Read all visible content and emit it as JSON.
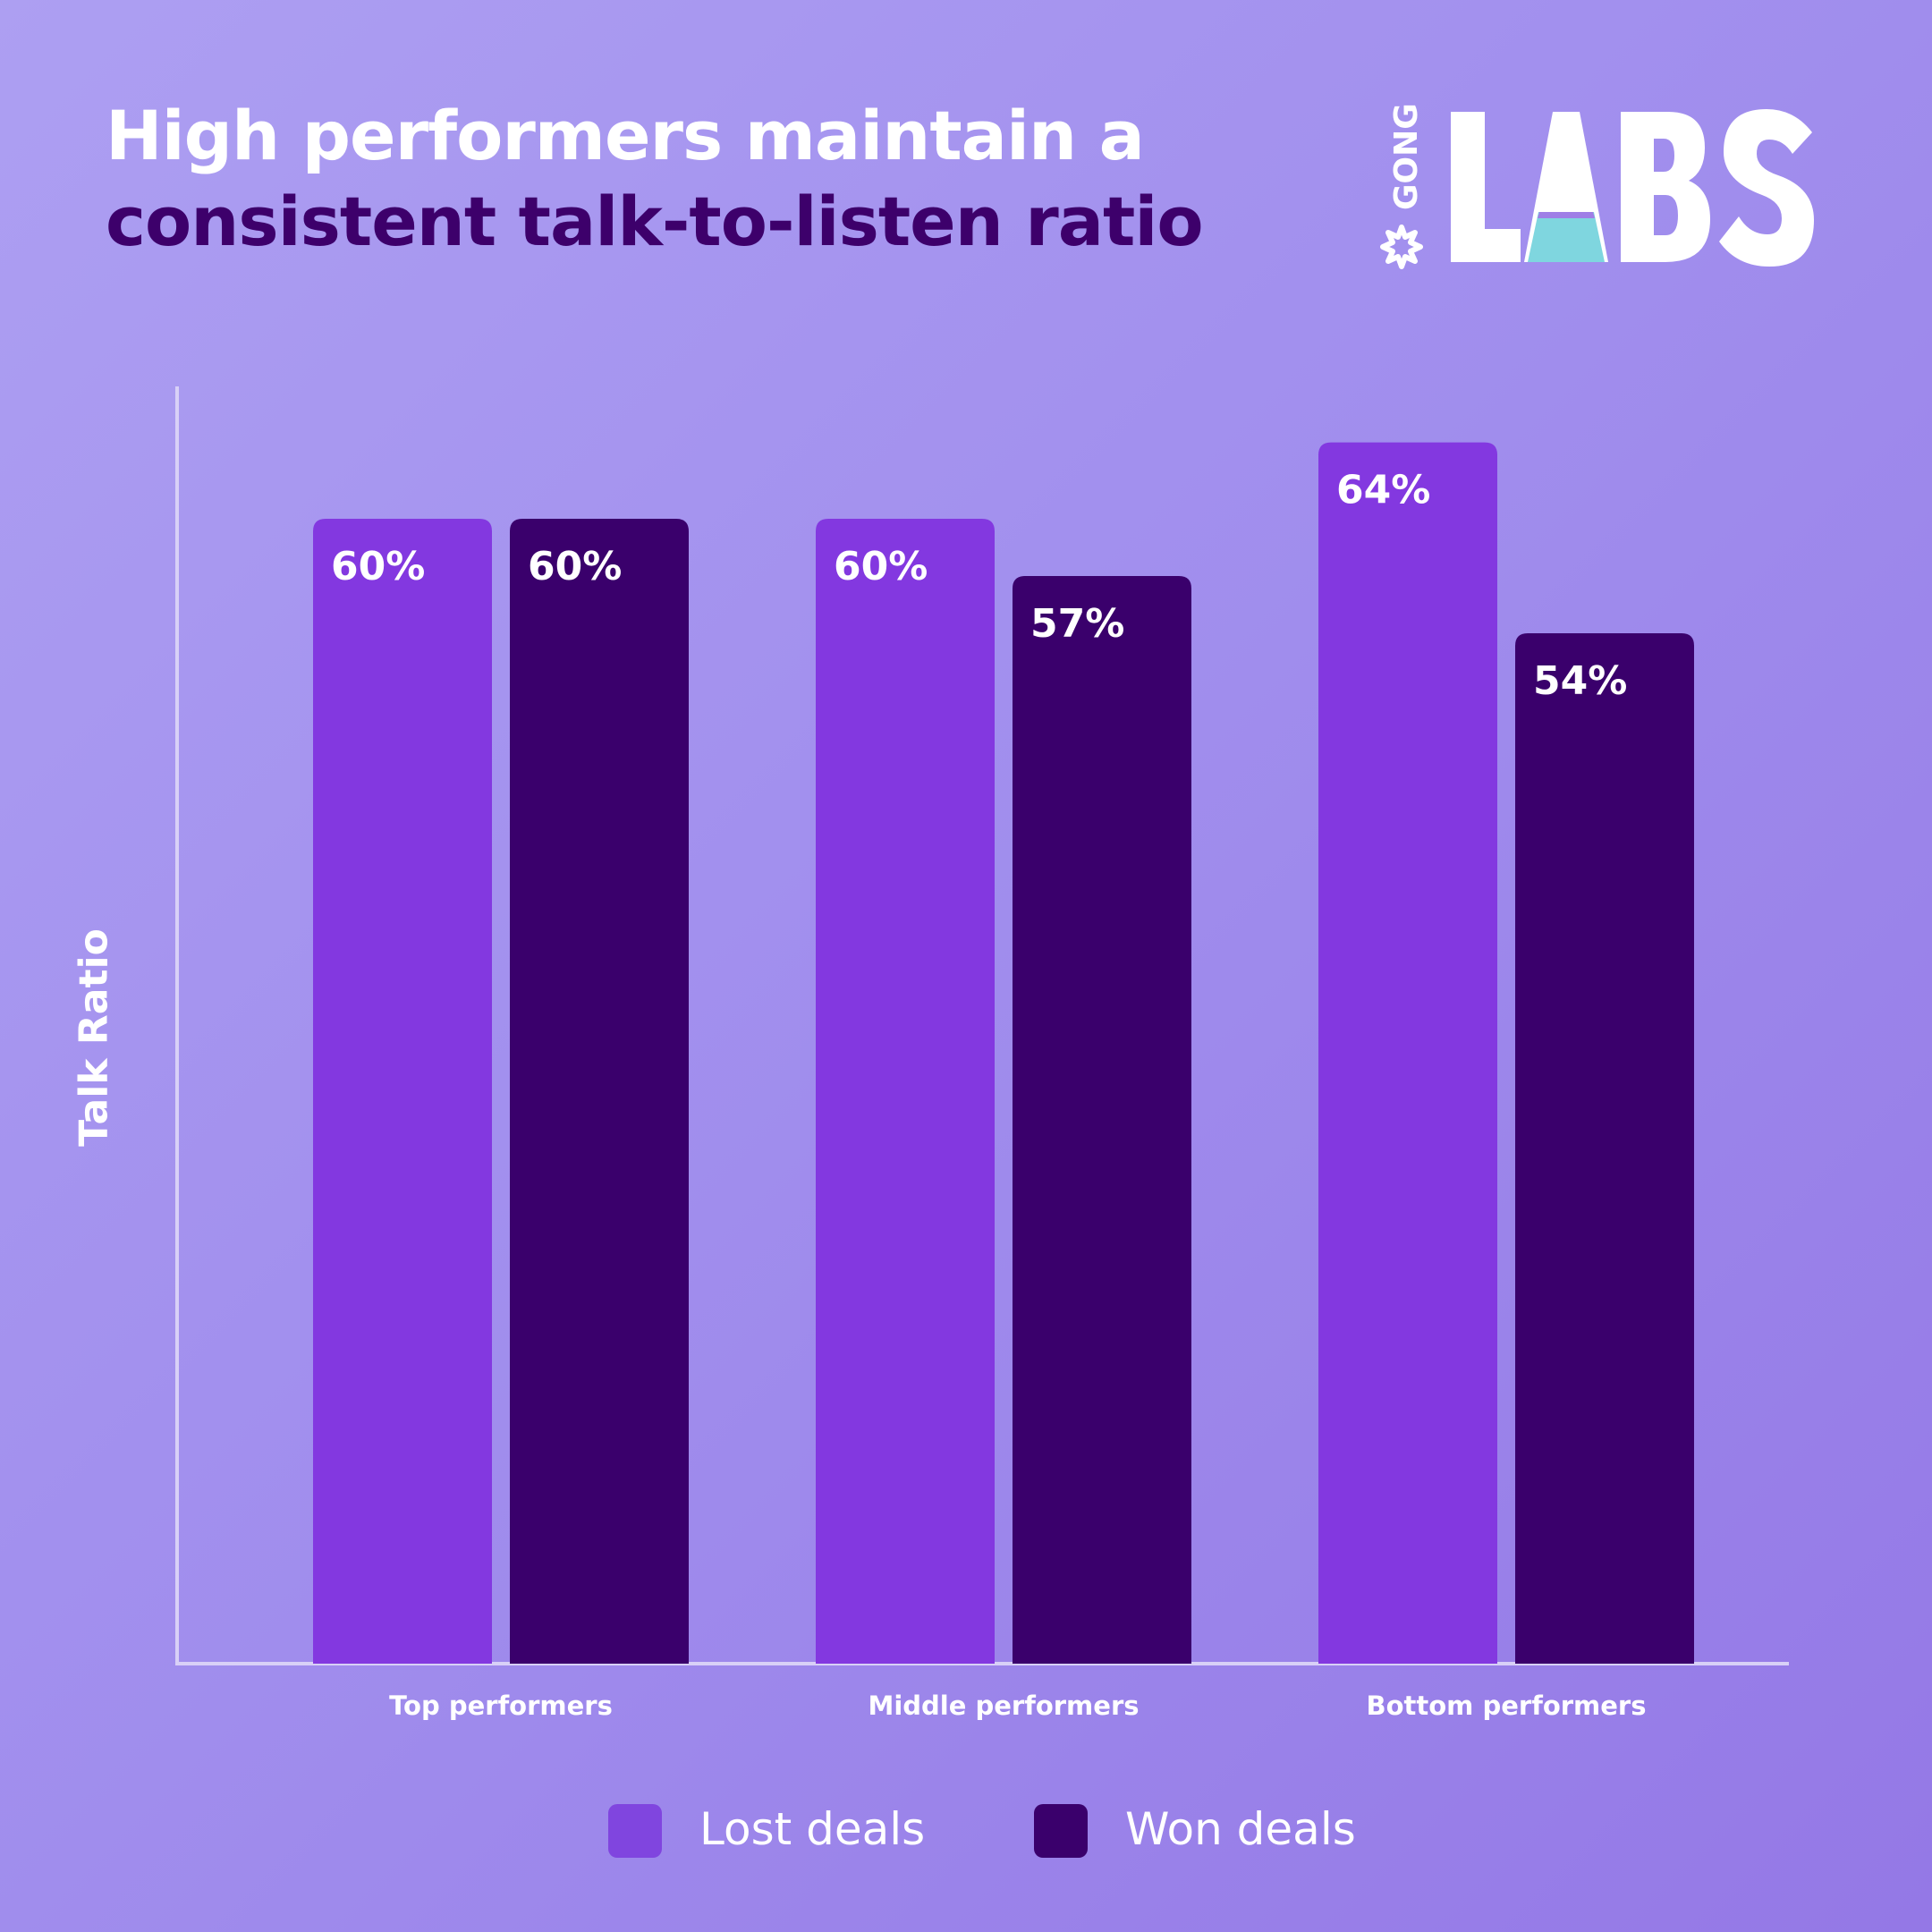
{
  "title": {
    "line1": "High performers maintain a",
    "line2": "consistent talk-to-listen ratio"
  },
  "logo": {
    "small_text": "GONG",
    "big_text": "LABS"
  },
  "colors": {
    "lost": "#8338e0",
    "won": "#3a006c",
    "axis": "#d8d0f7",
    "title_dark": "#3d006b",
    "logo_teal": "#7fd6df",
    "logo_purple": "#9f7fe6"
  },
  "chart_data": {
    "type": "bar",
    "title": "High performers maintain a consistent talk-to-listen ratio",
    "ylabel": "Talk Ratio",
    "xlabel": "",
    "categories": [
      "Top performers",
      "Middle performers",
      "Bottom performers"
    ],
    "series": [
      {
        "name": "Lost deals",
        "values": [
          60,
          60,
          64
        ],
        "labels": [
          "60%",
          "60%",
          "64%"
        ]
      },
      {
        "name": "Won deals",
        "values": [
          60,
          57,
          54
        ],
        "labels": [
          "60%",
          "57%",
          "54%"
        ]
      }
    ],
    "ylim": [
      0,
      66
    ],
    "grid": false,
    "legend": "bottom-center"
  }
}
